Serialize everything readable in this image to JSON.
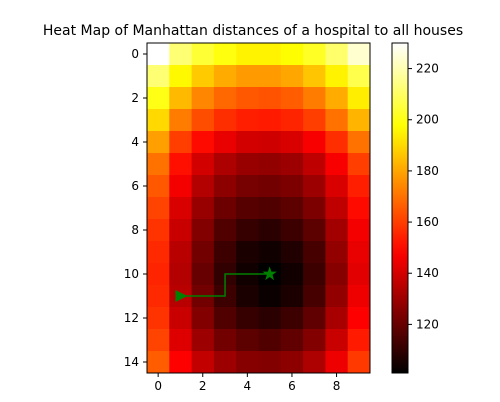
{
  "chart_data": {
    "type": "heatmap",
    "title": "Heat Map of Manhattan distances of a hospital to all houses",
    "xlabel": "",
    "ylabel": "",
    "grid": false,
    "colormap": "hot",
    "x": [
      0,
      1,
      2,
      3,
      4,
      5,
      6,
      7,
      8,
      9
    ],
    "y": [
      0,
      1,
      2,
      3,
      4,
      5,
      6,
      7,
      8,
      9,
      10,
      11,
      12,
      13,
      14
    ],
    "xticks": [
      0,
      2,
      4,
      6,
      8
    ],
    "yticks": [
      0,
      2,
      4,
      6,
      8,
      10,
      12,
      14
    ],
    "xlim": [
      -0.5,
      9.5
    ],
    "ylim": [
      14.5,
      -0.5
    ],
    "colorbar": {
      "range": [
        101,
        230
      ],
      "ticks": [
        120,
        140,
        160,
        180,
        200,
        220
      ]
    },
    "values": [
      [
        230,
        212,
        204,
        199,
        195,
        195,
        197,
        202,
        211,
        224
      ],
      [
        212,
        196,
        187,
        181,
        178,
        178,
        180,
        186,
        195,
        207
      ],
      [
        200,
        184,
        174,
        168,
        165,
        164,
        166,
        172,
        181,
        194
      ],
      [
        190,
        172,
        163,
        157,
        154,
        153,
        155,
        160,
        170,
        183
      ],
      [
        179,
        160,
        150,
        144,
        140,
        139,
        141,
        147,
        157,
        170
      ],
      [
        170,
        151,
        140,
        133,
        129,
        128,
        130,
        136,
        147,
        160
      ],
      [
        165,
        146,
        134,
        127,
        123,
        122,
        124,
        130,
        141,
        154
      ],
      [
        161,
        141,
        129,
        121,
        117,
        116,
        118,
        124,
        136,
        150
      ],
      [
        158,
        138,
        125,
        116,
        111,
        109,
        112,
        118,
        131,
        146
      ],
      [
        156,
        135,
        122,
        112,
        106,
        104,
        107,
        114,
        128,
        144
      ],
      [
        155,
        134,
        120,
        110,
        104,
        101,
        104,
        112,
        126,
        143
      ],
      [
        156,
        135,
        122,
        112,
        106,
        103,
        106,
        114,
        128,
        145
      ],
      [
        158,
        138,
        125,
        116,
        111,
        109,
        112,
        119,
        132,
        148
      ],
      [
        161,
        142,
        130,
        122,
        118,
        116,
        119,
        125,
        138,
        153
      ],
      [
        166,
        148,
        137,
        130,
        126,
        125,
        127,
        133,
        145,
        159
      ]
    ],
    "path": {
      "color": "#008000",
      "points": [
        [
          1,
          11
        ],
        [
          3,
          11
        ],
        [
          3,
          10
        ],
        [
          5,
          10
        ]
      ],
      "start_marker": "triangle-right",
      "end_marker": "star"
    }
  }
}
